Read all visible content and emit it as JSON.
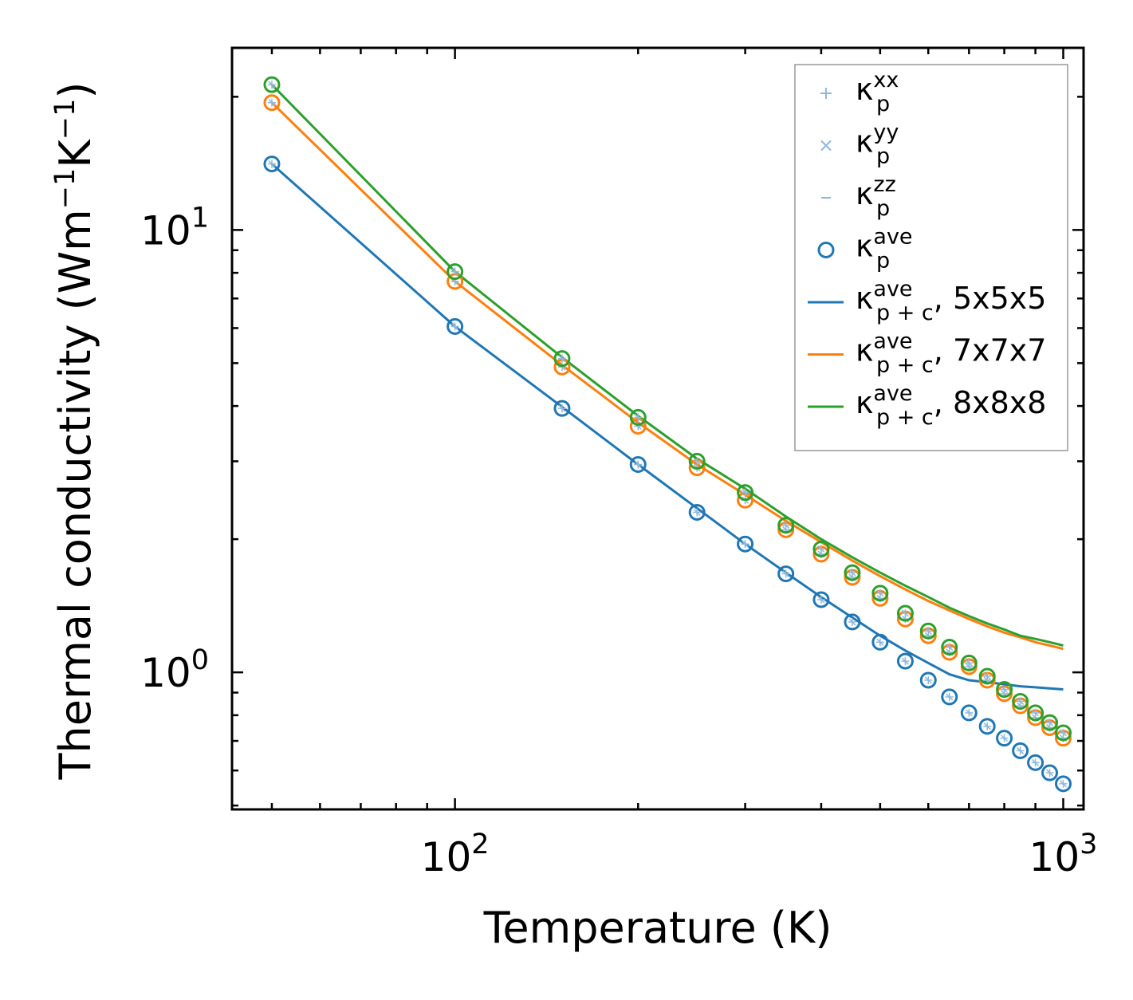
{
  "chart_data": {
    "type": "scatter",
    "title": "",
    "xlabel": "Temperature (K)",
    "ylabel": {
      "main": "Thermal conductivity (Wm",
      "e1": "−1",
      "mid": "K",
      "e2": "−1",
      "end": ")"
    },
    "xscale": "log",
    "yscale": "log",
    "xlim": [
      43,
      1080
    ],
    "ylim": [
      0.49,
      25.8
    ],
    "x_tick_labels": [
      {
        "value": 100,
        "base": "10",
        "exp": "2"
      },
      {
        "value": 1000,
        "base": "10",
        "exp": "3"
      }
    ],
    "y_tick_labels": [
      {
        "value": 1,
        "base": "10",
        "exp": "0"
      },
      {
        "value": 10,
        "base": "10",
        "exp": "1"
      }
    ],
    "legend_position": "top-right",
    "colors": {
      "blue": "#1f77b4",
      "orange": "#ff7f0e",
      "green": "#2ca02c",
      "light_blue": "#8fb9dc"
    },
    "temperatures": [
      50,
      100,
      150,
      200,
      250,
      300,
      350,
      400,
      450,
      500,
      550,
      600,
      650,
      700,
      750,
      800,
      850,
      900,
      950,
      1000
    ],
    "point_series": [
      {
        "name": "5x5x5",
        "color": "#1f77b4",
        "values": [
          14.1,
          6.05,
          3.95,
          2.95,
          2.3,
          1.95,
          1.67,
          1.46,
          1.3,
          1.17,
          1.06,
          0.96,
          0.88,
          0.81,
          0.755,
          0.71,
          0.665,
          0.625,
          0.593,
          0.56
        ]
      },
      {
        "name": "7x7x7",
        "color": "#ff7f0e",
        "values": [
          19.4,
          7.65,
          4.9,
          3.6,
          2.9,
          2.45,
          2.1,
          1.85,
          1.64,
          1.47,
          1.32,
          1.21,
          1.11,
          1.03,
          0.96,
          0.895,
          0.84,
          0.79,
          0.75,
          0.71
        ]
      },
      {
        "name": "8x8x8",
        "color": "#2ca02c",
        "values": [
          21.3,
          8.05,
          5.12,
          3.77,
          3.0,
          2.55,
          2.15,
          1.9,
          1.68,
          1.51,
          1.36,
          1.24,
          1.14,
          1.05,
          0.98,
          0.915,
          0.86,
          0.81,
          0.77,
          0.73
        ]
      }
    ],
    "line_series": [
      {
        "name": "κp+c ave, 5x5x5",
        "color": "#1f77b4",
        "values": [
          14.1,
          6.05,
          3.98,
          2.95,
          2.35,
          1.95,
          1.68,
          1.48,
          1.33,
          1.21,
          1.12,
          1.05,
          0.99,
          0.96,
          0.95,
          0.94,
          0.93,
          0.925,
          0.92,
          0.915
        ]
      },
      {
        "name": "κp+c ave, 7x7x7",
        "color": "#ff7f0e",
        "values": [
          19.4,
          7.65,
          4.95,
          3.67,
          2.95,
          2.52,
          2.2,
          1.97,
          1.79,
          1.65,
          1.54,
          1.45,
          1.38,
          1.32,
          1.27,
          1.23,
          1.2,
          1.17,
          1.15,
          1.13
        ]
      },
      {
        "name": "κp+c ave, 8x8x8",
        "color": "#2ca02c",
        "values": [
          21.3,
          8.05,
          5.15,
          3.8,
          3.04,
          2.6,
          2.25,
          2.0,
          1.82,
          1.68,
          1.57,
          1.48,
          1.4,
          1.34,
          1.29,
          1.25,
          1.21,
          1.19,
          1.17,
          1.15
        ]
      }
    ],
    "legend": [
      {
        "kind": "plus",
        "color": "#8fb9dc",
        "sym": "κ",
        "sub": "p",
        "sup": "xx",
        "suffix": ""
      },
      {
        "kind": "cross",
        "color": "#8fb9dc",
        "sym": "κ",
        "sub": "p",
        "sup": "yy",
        "suffix": ""
      },
      {
        "kind": "dash",
        "color": "#8fb9dc",
        "sym": "κ",
        "sub": "p",
        "sup": "zz",
        "suffix": ""
      },
      {
        "kind": "circle",
        "color": "#1f77b4",
        "sym": "κ",
        "sub": "p",
        "sup": "ave",
        "suffix": ""
      },
      {
        "kind": "line",
        "color": "#1f77b4",
        "sym": "κ",
        "sub": "p + c",
        "sup": "ave",
        "suffix": ", 5x5x5"
      },
      {
        "kind": "line",
        "color": "#ff7f0e",
        "sym": "κ",
        "sub": "p + c",
        "sup": "ave",
        "suffix": ", 7x7x7"
      },
      {
        "kind": "line",
        "color": "#2ca02c",
        "sym": "κ",
        "sub": "p + c",
        "sup": "ave",
        "suffix": ", 8x8x8"
      }
    ]
  }
}
